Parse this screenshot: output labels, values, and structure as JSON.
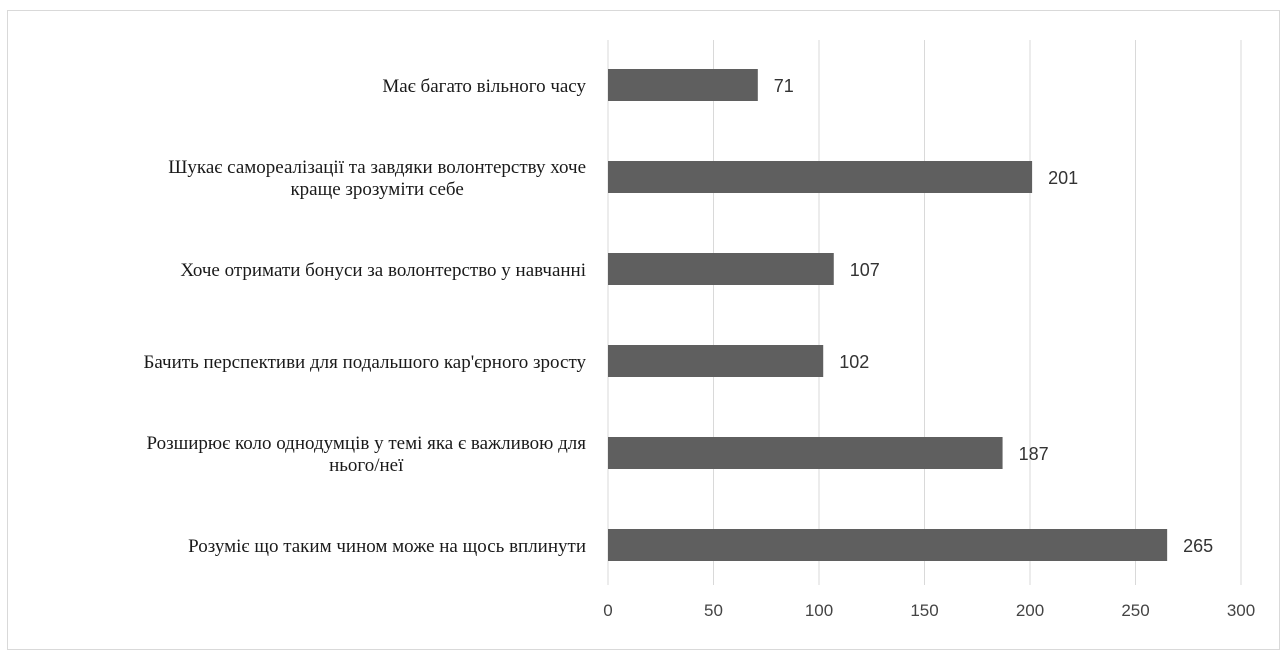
{
  "chart_data": {
    "type": "bar",
    "orientation": "horizontal",
    "categories": [
      "Має багато вільного часу",
      "Шукає самореалізації та завдяки волонтерству хоче краще зрозуміти себе",
      "Хоче отримати бонуси за волонтерство у навчанні",
      "Бачить перспективи для подальшого кар'єрного зросту",
      "Розширює коло однодумців у темі яка є важливою для нього/неї",
      "Розуміє що таким чином може на щось вплинути"
    ],
    "category_label_lines": [
      [
        "Має багато вільного часу"
      ],
      [
        "Шукає самореалізації та завдяки волонтерству хоче",
        "краще зрозуміти себе"
      ],
      [
        "Хоче отримати бонуси за волонтерство у навчанні"
      ],
      [
        "Бачить перспективи для подальшого кар'єрного зросту"
      ],
      [
        "Розширює коло однодумців у темі яка є важливою для",
        "нього/неї"
      ],
      [
        "Розуміє що таким чином може на щось вплинути"
      ]
    ],
    "values": [
      71,
      201,
      107,
      102,
      187,
      265
    ],
    "data_labels": [
      "71",
      "201",
      "107",
      "102",
      "187",
      "265"
    ],
    "xlim": [
      0,
      300
    ],
    "xticks": [
      "0",
      "50",
      "100",
      "150",
      "200",
      "250",
      "300"
    ],
    "title": "",
    "xlabel": "",
    "ylabel": "",
    "grid": true,
    "legend": "none",
    "colors": {
      "bar": "#5f5f5f",
      "grid": "#d9d9d9",
      "border": "#d9d9d9"
    }
  }
}
